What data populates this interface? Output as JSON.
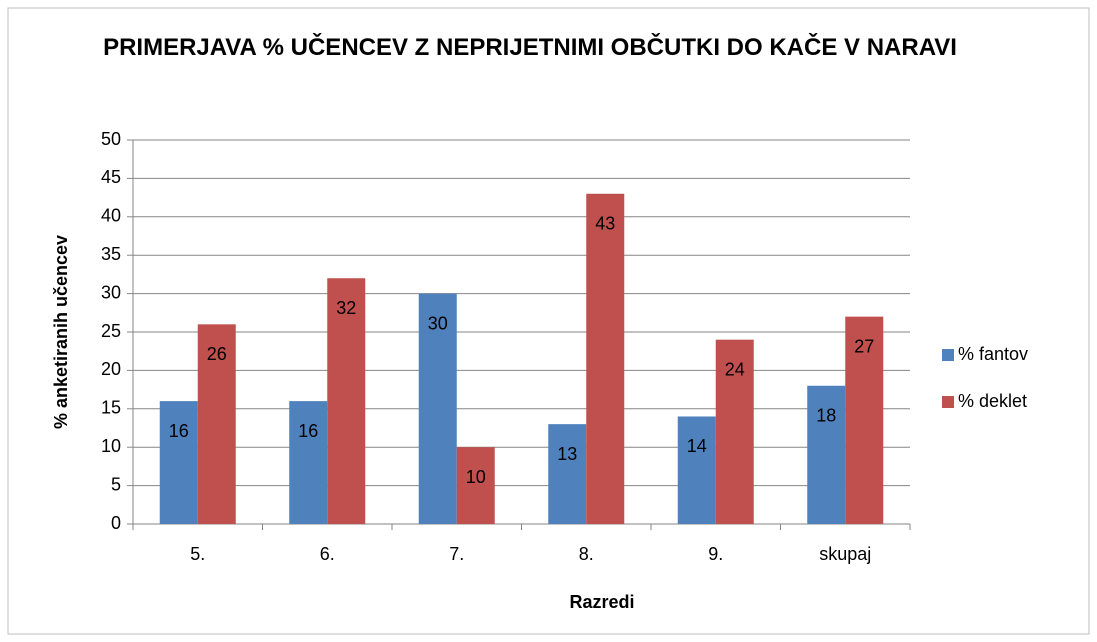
{
  "chart_data": {
    "type": "bar",
    "title": "PRIMERJAVA % UČENCEV Z NEPRIJETNIMI OBČUTKI DO KAČE V NARAVI",
    "x_label": "Razredi",
    "y_label": "% anketiranih učencev",
    "categories": [
      "5.",
      "6.",
      "7.",
      "8.",
      "9.",
      "skupaj"
    ],
    "series": [
      {
        "name": "% fantov",
        "color": "#4f81bd",
        "values": [
          16,
          16,
          30,
          13,
          14,
          18
        ]
      },
      {
        "name": "% deklet",
        "color": "#c0504d",
        "values": [
          26,
          32,
          10,
          43,
          24,
          27
        ]
      }
    ],
    "ylim": [
      0,
      50
    ],
    "yticks": [
      0,
      5,
      10,
      15,
      20,
      25,
      30,
      35,
      40,
      45,
      50
    ],
    "grid": true,
    "legend": "right"
  }
}
